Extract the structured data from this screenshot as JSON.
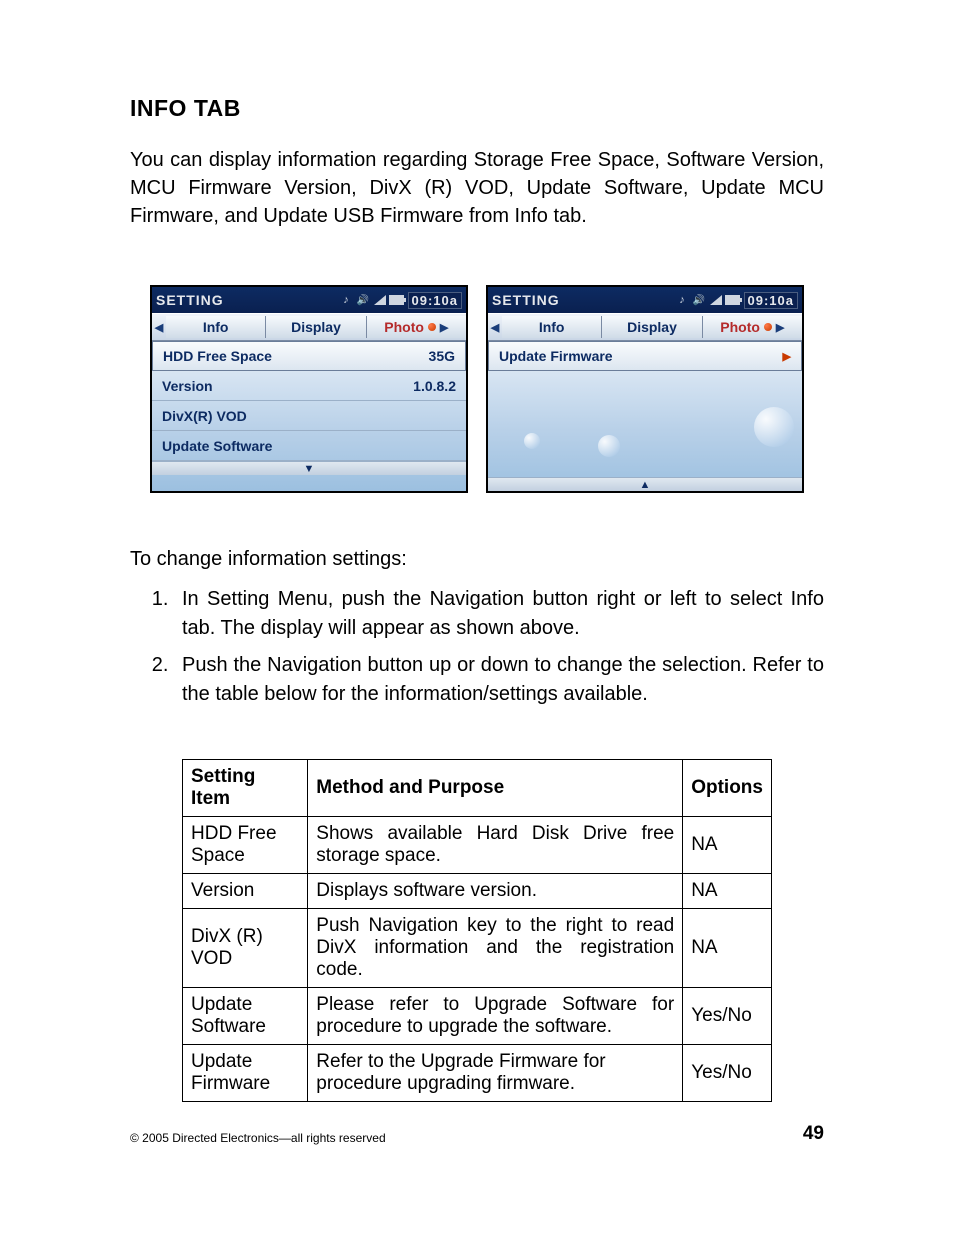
{
  "heading": "INFO TAB",
  "intro": "You can display information regarding Storage Free Space, Software Version, MCU Firmware Version, DivX (R) VOD, Update Software, Update MCU Firmware, and Update USB Firmware from Info tab.",
  "device": {
    "title": "SETTING",
    "time": "09:10a",
    "tabs": {
      "info": "Info",
      "display": "Display",
      "photo": "Photo"
    }
  },
  "panelA": {
    "rows": [
      {
        "label": "HDD Free Space",
        "value": "35G"
      },
      {
        "label": "Version",
        "value": "1.0.8.2"
      },
      {
        "label": "DivX(R) VOD",
        "value": ""
      },
      {
        "label": "Update Software",
        "value": ""
      }
    ]
  },
  "panelB": {
    "rows": [
      {
        "label": "Update Firmware",
        "value": ""
      }
    ]
  },
  "lead2": "To change information settings:",
  "steps": [
    "In Setting Menu, push the Navigation button right or left to select Info tab. The display will appear as shown above.",
    "Push the Navigation button up or down to change the selection.  Refer to the table below for the information/settings available."
  ],
  "table": {
    "headers": [
      "Setting Item",
      "Method and Purpose",
      "Options"
    ],
    "rows": [
      [
        "HDD Free Space",
        "Shows available Hard Disk Drive free storage space.",
        "NA"
      ],
      [
        "Version",
        "Displays software version.",
        "NA"
      ],
      [
        "DivX (R) VOD",
        "Push Navigation key to the right to read DivX information and the registration code.",
        "NA"
      ],
      [
        "Update Software",
        "Please refer to Upgrade Software for procedure to upgrade the software.",
        "Yes/No"
      ],
      [
        "Update Firmware",
        "Refer to the Upgrade Firmware for procedure upgrading firmware.",
        "Yes/No"
      ]
    ]
  },
  "footer": {
    "copyright": "© 2005  Directed Electronics—all rights reserved",
    "page": "49"
  },
  "colors": {
    "titlebar_bg": "#0d2b62",
    "tab_text": "#0d2b62",
    "photo_text": "#b52b2b",
    "list_bg_top": "#e8f0f8",
    "list_bg_bottom": "#9cc0e0",
    "border": "#000000"
  }
}
